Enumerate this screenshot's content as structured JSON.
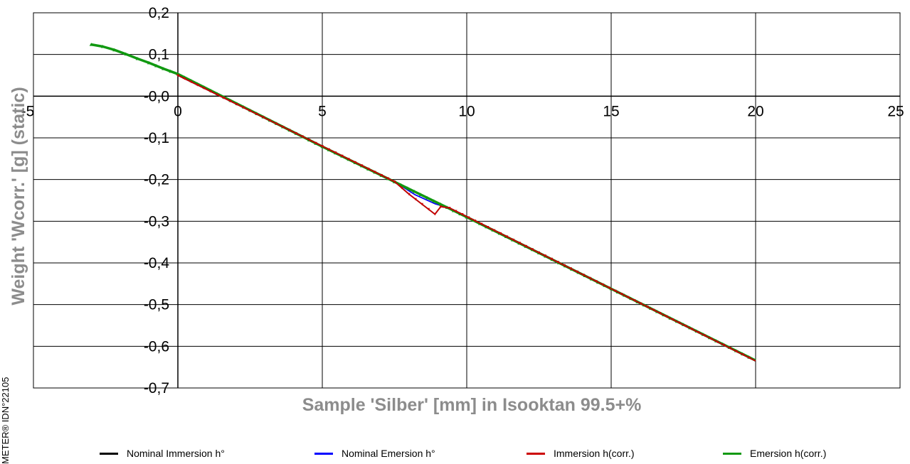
{
  "side_label": "METER® IDN°22105",
  "chart_data": {
    "type": "line",
    "title": "",
    "xlabel": "Sample 'Silber' [mm] in Isooktan 99.5+%",
    "ylabel": "Weight 'Wcorr.' [g]  (static)",
    "xlim": [
      -5,
      25
    ],
    "ylim": [
      -0.7,
      0.2
    ],
    "x_ticks": [
      "-5",
      "0",
      "5",
      "10",
      "15",
      "20",
      "25"
    ],
    "y_ticks": [
      "0,2",
      "0,1",
      "-0,0",
      "-0,1",
      "-0,2",
      "-0,3",
      "-0,4",
      "-0,5",
      "-0,6",
      "-0,7"
    ],
    "grid": true,
    "legend_position": "bottom",
    "series": [
      {
        "name": "Nominal Immersion h°",
        "color": "#000000",
        "x": [
          0,
          7.5,
          8.0,
          8.9,
          9.1,
          9.4,
          20
        ],
        "y": [
          0.05,
          -0.205,
          -0.235,
          -0.283,
          -0.265,
          -0.268,
          -0.635
        ]
      },
      {
        "name": "Nominal Emersion h°",
        "color": "#0000ff",
        "x": [
          0,
          7.5,
          8.2,
          8.9,
          9.4,
          20
        ],
        "y": [
          0.05,
          -0.205,
          -0.236,
          -0.258,
          -0.268,
          -0.635
        ]
      },
      {
        "name": "Immersion h(corr.)",
        "color": "#cc0000",
        "x": [
          0,
          7.5,
          8.0,
          8.9,
          9.1,
          9.4,
          20
        ],
        "y": [
          0.05,
          -0.205,
          -0.235,
          -0.283,
          -0.265,
          -0.268,
          -0.635
        ]
      },
      {
        "name": "Emersion h(corr.)",
        "color": "#119911",
        "x": [
          -3.0,
          -2.6,
          -2.2,
          -1.8,
          -1.4,
          -1.0,
          -0.5,
          0,
          5,
          10,
          15,
          20
        ],
        "y": [
          0.124,
          0.119,
          0.111,
          0.101,
          0.09,
          0.08,
          0.066,
          0.053,
          -0.121,
          -0.29,
          -0.462,
          -0.634
        ]
      }
    ]
  }
}
